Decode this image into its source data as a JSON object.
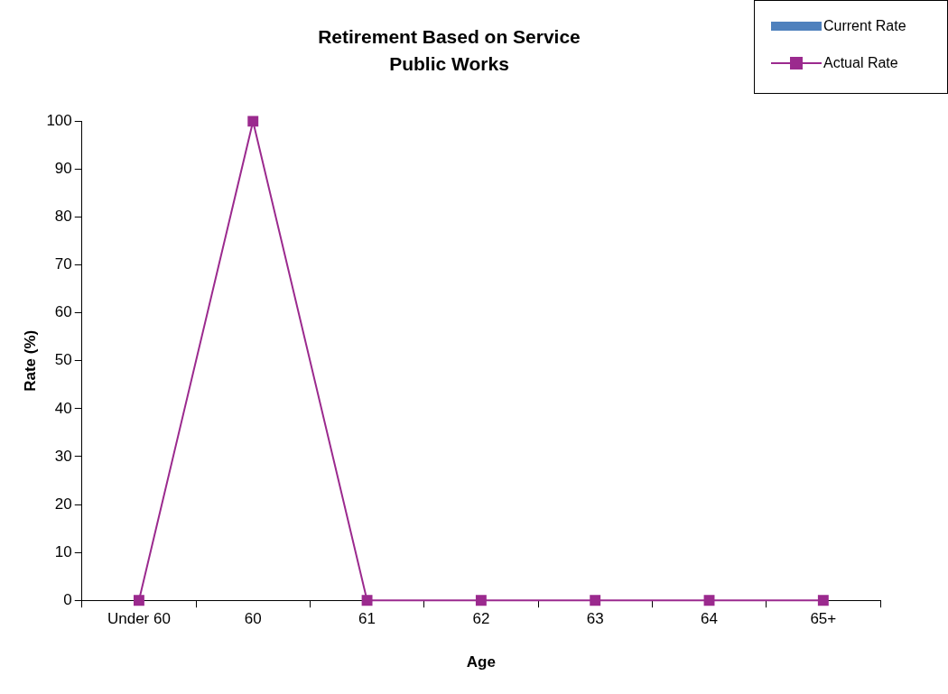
{
  "chart_data": {
    "type": "line",
    "title": "Retirement Based on Service",
    "subtitle": "Public Works",
    "xlabel": "Age",
    "ylabel": "Rate (%)",
    "categories": [
      "Under 60",
      "60",
      "61",
      "62",
      "63",
      "64",
      "65+"
    ],
    "series": [
      {
        "name": "Current Rate",
        "type": "bar",
        "color": "#4f81bd",
        "values": [
          0,
          0,
          0,
          0,
          0,
          0,
          0
        ]
      },
      {
        "name": "Actual Rate",
        "color": "#9b2a8e",
        "values": [
          0,
          100,
          0,
          0,
          0,
          0,
          0
        ]
      }
    ],
    "ylim": [
      0,
      100
    ],
    "yticks": [
      0,
      10,
      20,
      30,
      40,
      50,
      60,
      70,
      80,
      90,
      100
    ],
    "grid": false,
    "legend": "top right",
    "marker": "square",
    "line_style": "solid"
  }
}
